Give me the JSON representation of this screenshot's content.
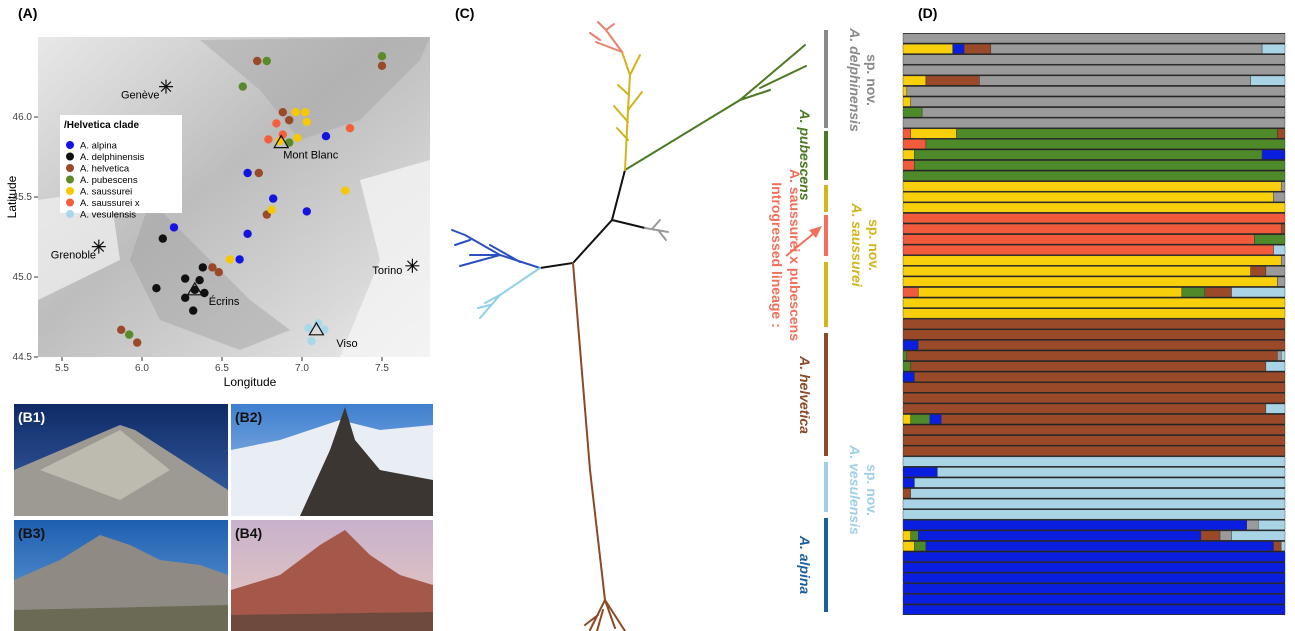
{
  "map": {
    "label": "(A)",
    "type": "scatter",
    "x_label": "Longitude",
    "y_label": "Latitude",
    "xlim": [
      5.35,
      7.8
    ],
    "ylim": [
      44.5,
      46.5
    ],
    "xticks": [
      5.5,
      {
        "value": 6,
        "label": "6.0"
      },
      6.5,
      {
        "value": 7,
        "label": "7.0"
      },
      7.5
    ],
    "yticks": [
      44.5,
      {
        "value": 45,
        "label": "45.0"
      },
      45.5,
      {
        "value": 46,
        "label": "46.0"
      }
    ],
    "legend_title": "/Helvetica clade",
    "series": [
      {
        "name": "A. alpina",
        "color": "#1414e0",
        "x": [
          7.15,
          6.66,
          6.82,
          7.03,
          6.2,
          6.66,
          6.61
        ],
        "y": [
          45.88,
          45.65,
          45.49,
          45.41,
          45.31,
          45.27,
          45.11
        ]
      },
      {
        "name": "A. delphinensis",
        "color": "#111111",
        "x": [
          6.13,
          6.38,
          6.27,
          6.09,
          6.36,
          6.27,
          6.39,
          6.32,
          6.33
        ],
        "y": [
          45.24,
          45.06,
          44.99,
          44.93,
          44.98,
          44.87,
          44.9,
          44.79,
          44.92
        ]
      },
      {
        "name": "A. helvetica",
        "color": "#9a4a28",
        "x": [
          6.72,
          6.88,
          6.92,
          6.73,
          6.78,
          6.44,
          6.48,
          7.5,
          5.87,
          5.97
        ],
        "y": [
          46.35,
          46.03,
          45.98,
          45.65,
          45.39,
          45.06,
          45.03,
          46.32,
          44.67,
          44.59
        ]
      },
      {
        "name": "A. pubescens",
        "color": "#5a8a2a",
        "x": [
          6.78,
          7.5,
          6.63,
          6.92,
          5.92
        ],
        "y": [
          46.35,
          46.38,
          46.19,
          45.84,
          44.64
        ]
      },
      {
        "name": "A. saussurei",
        "color": "#f5c800",
        "x": [
          6.96,
          7.02,
          7.03,
          6.97,
          6.86,
          6.81,
          6.55,
          7.27
        ],
        "y": [
          46.03,
          46.03,
          45.97,
          45.87,
          45.85,
          45.42,
          45.11,
          45.54
        ]
      },
      {
        "name": "A. saussurei x",
        "color": "#f5603c",
        "x": [
          6.84,
          6.79,
          7.3,
          6.88
        ],
        "y": [
          45.96,
          45.86,
          45.93,
          45.89
        ]
      },
      {
        "name": "A. vesulensis",
        "color": "#a8d8ea",
        "x": [
          7.04,
          7.1,
          7.06,
          7.14
        ],
        "y": [
          44.68,
          44.71,
          44.6,
          44.67
        ]
      }
    ],
    "landmarks": [
      {
        "label": "Genève",
        "marker": "star",
        "lon": 6.15,
        "lat": 46.19
      },
      {
        "label": "Grenoble",
        "marker": "star",
        "lon": 5.73,
        "lat": 45.19
      },
      {
        "label": "Torino",
        "marker": "star",
        "lon": 7.69,
        "lat": 45.07
      },
      {
        "label": "Mont Blanc",
        "marker": "triangle",
        "lon": 6.87,
        "lat": 45.84
      },
      {
        "label": "Écrins",
        "marker": "triangle",
        "lon": 6.33,
        "lat": 44.92
      },
      {
        "label": "Viso",
        "marker": "triangle",
        "lon": 7.09,
        "lat": 44.67
      }
    ]
  },
  "photos": [
    "(B1)",
    "(B2)",
    "(B3)",
    "(B4)"
  ],
  "tree": {
    "label": "(C)",
    "clades": [
      {
        "lines": [
          "A. delphinensis",
          "sp. nov."
        ],
        "color": "#8a8a8a"
      },
      {
        "lines": [
          "A. pubescens"
        ],
        "color": "#4a7a22"
      },
      {
        "lines": [
          "A. saussurei",
          "sp. nov."
        ],
        "color": "#d4b41a"
      },
      {
        "lines": [
          "Introgressed lineage :",
          "A. saussurei x pubescens"
        ],
        "color": "#f0705a"
      },
      {
        "lines": [
          "A. helvetica"
        ],
        "color": "#8b4a25"
      },
      {
        "lines": [
          "A. vesulensis",
          "sp. nov."
        ],
        "color": "#9dd0e6"
      },
      {
        "lines": [
          "A. alpina"
        ],
        "color": "#1a5fa0"
      }
    ]
  },
  "structure": {
    "label": "(D)",
    "type": "stacked_bar",
    "colors": [
      "#f25a3c",
      "#f7cf0a",
      "#4e8a2a",
      "#0a1ee0",
      "#9a4a28",
      "#9a9a9a",
      "#a8d4e6"
    ],
    "rows": [
      [
        0,
        0,
        0,
        0,
        0,
        100,
        0
      ],
      [
        0,
        13,
        0,
        3,
        7,
        71,
        6
      ],
      [
        0,
        0,
        0,
        0,
        0,
        100,
        0
      ],
      [
        0,
        0,
        0,
        0,
        0,
        100,
        0
      ],
      [
        0,
        6,
        0,
        0,
        14,
        71,
        9
      ],
      [
        0,
        1,
        0,
        0,
        0,
        99,
        0
      ],
      [
        0,
        2,
        0,
        0,
        0,
        98,
        0
      ],
      [
        0,
        0,
        5,
        0,
        0,
        95,
        0
      ],
      [
        0,
        0,
        0,
        0,
        0,
        100,
        0
      ],
      [
        2,
        12,
        84,
        0,
        2,
        0,
        0
      ],
      [
        6,
        0,
        94,
        0,
        0,
        0,
        0
      ],
      [
        0,
        3,
        91,
        6,
        0,
        0,
        0
      ],
      [
        3,
        0,
        97,
        0,
        0,
        0,
        0
      ],
      [
        0,
        0,
        100,
        0,
        0,
        0,
        0
      ],
      [
        0,
        99,
        0,
        0,
        0,
        1,
        0
      ],
      [
        0,
        97,
        0,
        0,
        0,
        3,
        0
      ],
      [
        0,
        100,
        0,
        0,
        0,
        0,
        0
      ],
      [
        100,
        0,
        0,
        0,
        0,
        0,
        0
      ],
      [
        99,
        0,
        0,
        0,
        1,
        0,
        0
      ],
      [
        92,
        0,
        8,
        0,
        0,
        0,
        0
      ],
      [
        97,
        0,
        0,
        0,
        0,
        0,
        3
      ],
      [
        0,
        99,
        0,
        0,
        0,
        1,
        0
      ],
      [
        0,
        91,
        0,
        0,
        4,
        5,
        0
      ],
      [
        0,
        98,
        0,
        0,
        0,
        2,
        0
      ],
      [
        4,
        69,
        6,
        0,
        7,
        0,
        14
      ],
      [
        0,
        100,
        0,
        0,
        0,
        0,
        0
      ],
      [
        0,
        100,
        0,
        0,
        0,
        0,
        0
      ],
      [
        0,
        0,
        0,
        0,
        100,
        0,
        0
      ],
      [
        0,
        0,
        0,
        0,
        100,
        0,
        0
      ],
      [
        0,
        0,
        0,
        4,
        96,
        0,
        0
      ],
      [
        0,
        0,
        1,
        0,
        97,
        1,
        1
      ],
      [
        0,
        0,
        2,
        0,
        93,
        0,
        5
      ],
      [
        0,
        0,
        0,
        3,
        97,
        0,
        0
      ],
      [
        0,
        0,
        0,
        0,
        100,
        0,
        0
      ],
      [
        0,
        0,
        0,
        0,
        100,
        0,
        0
      ],
      [
        0,
        0,
        0,
        0,
        95,
        0,
        5
      ],
      [
        0,
        2,
        5,
        3,
        90,
        0,
        0
      ],
      [
        0,
        0,
        0,
        0,
        100,
        0,
        0
      ],
      [
        0,
        0,
        0,
        0,
        100,
        0,
        0
      ],
      [
        0,
        0,
        0,
        0,
        100,
        0,
        0
      ],
      [
        0,
        0,
        0,
        0,
        0,
        0,
        100
      ],
      [
        0,
        0,
        0,
        9,
        0,
        0,
        91
      ],
      [
        0,
        0,
        0,
        3,
        0,
        0,
        97
      ],
      [
        0,
        0,
        0,
        0,
        2,
        0,
        98
      ],
      [
        0,
        0,
        0,
        0,
        0,
        0,
        100
      ],
      [
        0,
        0,
        0,
        0,
        0,
        0,
        100
      ],
      [
        0,
        0,
        0,
        90,
        0,
        3,
        7
      ],
      [
        0,
        2,
        2,
        74,
        5,
        3,
        14
      ],
      [
        0,
        3,
        3,
        91,
        2,
        0,
        1
      ],
      [
        0,
        0,
        0,
        100,
        0,
        0,
        0
      ],
      [
        0,
        0,
        0,
        100,
        0,
        0,
        0
      ],
      [
        0,
        0,
        0,
        100,
        0,
        0,
        0
      ],
      [
        0,
        0,
        0,
        100,
        0,
        0,
        0
      ],
      [
        0,
        0,
        0,
        100,
        0,
        0,
        0
      ],
      [
        0,
        0,
        0,
        100,
        0,
        0,
        0
      ]
    ]
  }
}
